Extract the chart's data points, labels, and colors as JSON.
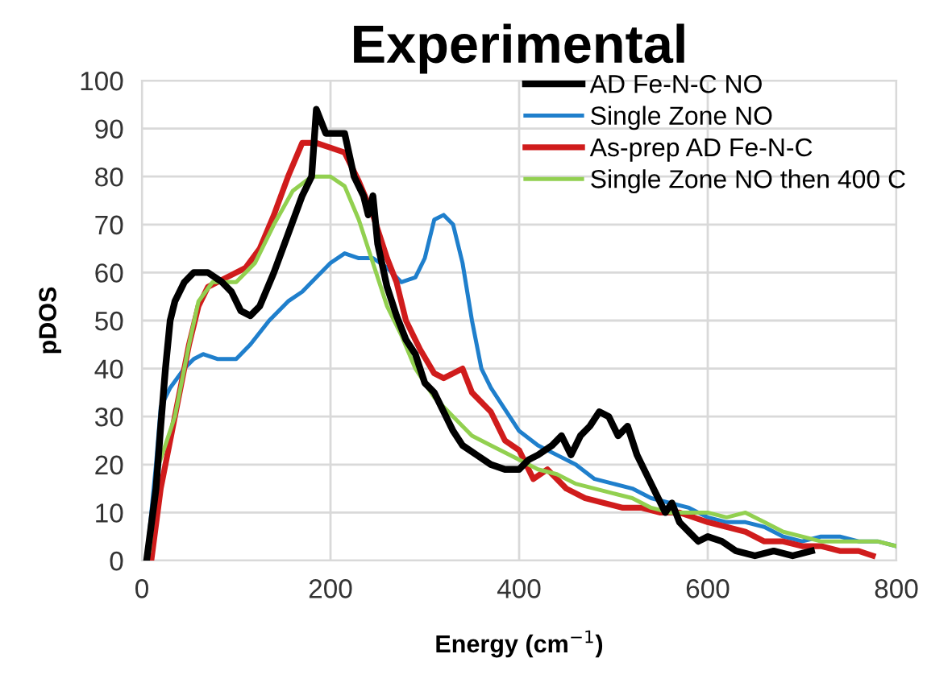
{
  "chart_data": {
    "type": "line",
    "title": "Experimental",
    "xlabel": "Energy (cm$^{−1}$)",
    "ylabel": "pDOS",
    "xlim": [
      0,
      800
    ],
    "xticks": [
      0,
      200,
      400,
      600,
      800
    ],
    "ylim": [
      0,
      100
    ],
    "yticks": [
      0,
      10,
      20,
      30,
      40,
      50,
      60,
      70,
      80,
      90,
      100
    ],
    "grid": true,
    "legend": "top right",
    "marker": "none",
    "line_style": "solid",
    "series": [
      {
        "name": "AD Fe-N-C NO",
        "color": "#000000",
        "x": [
          5,
          15,
          20,
          25,
          30,
          35,
          45,
          55,
          70,
          85,
          95,
          105,
          115,
          125,
          140,
          155,
          170,
          180,
          185,
          195,
          205,
          215,
          225,
          235,
          240,
          245,
          250,
          260,
          270,
          280,
          290,
          300,
          310,
          320,
          330,
          340,
          355,
          370,
          385,
          400,
          410,
          420,
          435,
          445,
          455,
          465,
          475,
          485,
          495,
          505,
          515,
          525,
          535,
          545,
          555,
          562,
          570,
          580,
          590,
          600,
          615,
          630,
          650,
          670,
          690,
          710
        ],
        "values": [
          0,
          15,
          28,
          40,
          50,
          54,
          58,
          60,
          60,
          58,
          56,
          52,
          51,
          53,
          60,
          68,
          76,
          80,
          94,
          89,
          89,
          89,
          80,
          76,
          72,
          76,
          66,
          57,
          51,
          46,
          43,
          37,
          35,
          31,
          27,
          24,
          22,
          20,
          19,
          19,
          21,
          22,
          24,
          26,
          22,
          26,
          28,
          31,
          30,
          26,
          28,
          22,
          18,
          14,
          10,
          12,
          8,
          6,
          4,
          5,
          4,
          2,
          1,
          2,
          1,
          2
        ]
      },
      {
        "name": "Single Zone NO",
        "color": "#1f7fcc",
        "x": [
          5,
          15,
          20,
          30,
          45,
          55,
          65,
          80,
          100,
          115,
          135,
          155,
          170,
          185,
          200,
          215,
          230,
          245,
          260,
          275,
          290,
          300,
          310,
          320,
          330,
          340,
          350,
          360,
          370,
          380,
          400,
          420,
          440,
          460,
          480,
          500,
          520,
          540,
          560,
          580,
          600,
          620,
          640,
          660,
          680,
          700,
          720,
          740,
          760,
          780,
          800
        ],
        "values": [
          0,
          20,
          32,
          36,
          40,
          42,
          43,
          42,
          42,
          45,
          50,
          54,
          56,
          59,
          62,
          64,
          63,
          63,
          61,
          58,
          59,
          63,
          71,
          72,
          70,
          62,
          50,
          40,
          36,
          33,
          27,
          24,
          22,
          20,
          17,
          16,
          15,
          13,
          12,
          11,
          9,
          8,
          8,
          7,
          5,
          4,
          5,
          5,
          4,
          4,
          3
        ]
      },
      {
        "name": "As-prep AD Fe-N-C",
        "color": "#d01c1c",
        "x": [
          10,
          20,
          35,
          50,
          60,
          70,
          90,
          110,
          125,
          140,
          155,
          170,
          185,
          200,
          215,
          230,
          245,
          260,
          270,
          280,
          295,
          310,
          320,
          340,
          350,
          370,
          385,
          400,
          415,
          430,
          450,
          470,
          490,
          510,
          530,
          550,
          570,
          600,
          620,
          640,
          660,
          680,
          700,
          720,
          740,
          760,
          775
        ],
        "values": [
          0,
          15,
          30,
          45,
          53,
          57,
          59,
          61,
          65,
          72,
          80,
          87,
          87,
          86,
          85,
          79,
          72,
          63,
          58,
          50,
          44,
          39,
          38,
          40,
          35,
          31,
          25,
          23,
          17,
          19,
          15,
          13,
          12,
          11,
          11,
          10,
          10,
          8,
          7,
          6,
          4,
          4,
          3,
          3,
          2,
          2,
          1
        ]
      },
      {
        "name": "Single Zone NO then 400 C",
        "color": "#92d050",
        "x": [
          8,
          18,
          35,
          50,
          60,
          75,
          100,
          120,
          140,
          160,
          180,
          200,
          215,
          230,
          245,
          260,
          275,
          290,
          310,
          330,
          350,
          370,
          400,
          420,
          440,
          460,
          480,
          500,
          520,
          540,
          560,
          580,
          600,
          620,
          640,
          660,
          680,
          700,
          720,
          740,
          760,
          780,
          800
        ],
        "values": [
          2,
          20,
          30,
          45,
          54,
          58,
          58,
          62,
          70,
          77,
          80,
          80,
          78,
          71,
          62,
          53,
          47,
          40,
          34,
          30,
          26,
          24,
          21,
          19,
          18,
          16,
          15,
          14,
          13,
          11,
          10,
          10,
          10,
          9,
          10,
          8,
          6,
          5,
          4,
          4,
          4,
          4,
          3
        ]
      }
    ]
  }
}
